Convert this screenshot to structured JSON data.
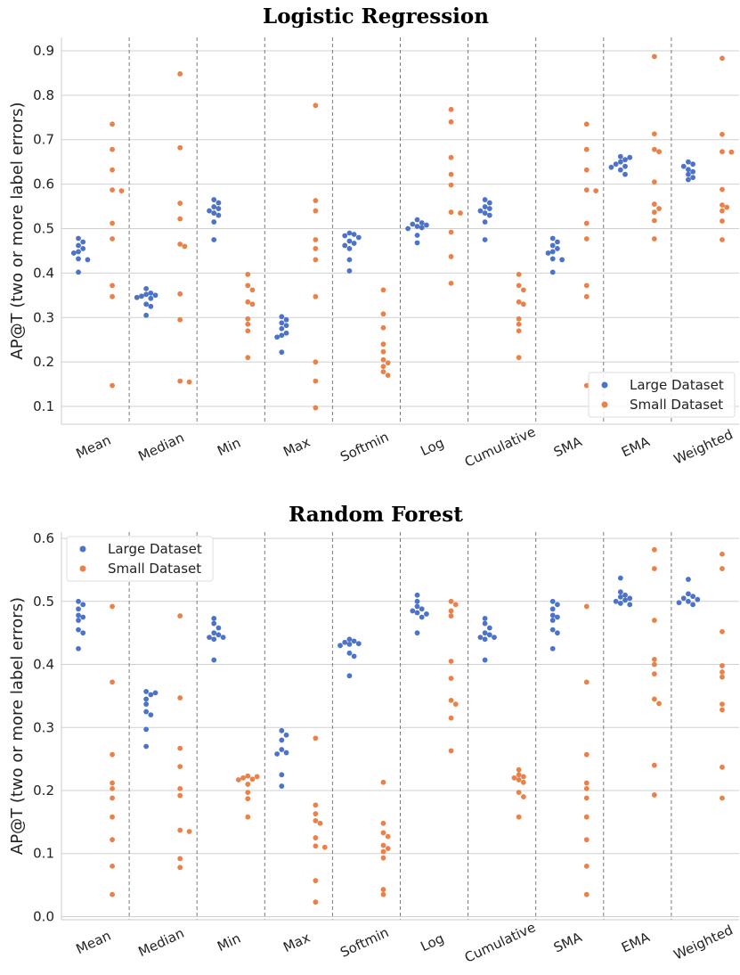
{
  "chart_data": [
    {
      "type": "scatter",
      "title": "Logistic Regression",
      "ylabel": "AP@T (two or more label errors)",
      "xlabel": "",
      "categories": [
        "Mean",
        "Median",
        "Min",
        "Max",
        "Softmin",
        "Log",
        "Cumulative",
        "SMA",
        "EMA",
        "Weighted"
      ],
      "ylim": [
        0.06,
        0.93
      ],
      "yticks": [
        "0.1",
        "0.2",
        "0.3",
        "0.4",
        "0.5",
        "0.6",
        "0.7",
        "0.8",
        "0.9"
      ],
      "grid": true,
      "legend_position": "bottom-right",
      "series": [
        {
          "name": "Large Dataset",
          "color": "#4c72c9",
          "values": [
            [
              0.478,
              0.47,
              0.462,
              0.455,
              0.448,
              0.445,
              0.432,
              0.43,
              0.402
            ],
            [
              0.365,
              0.355,
              0.352,
              0.35,
              0.348,
              0.345,
              0.343,
              0.33,
              0.325,
              0.305
            ],
            [
              0.565,
              0.558,
              0.549,
              0.545,
              0.54,
              0.535,
              0.53,
              0.515,
              0.475
            ],
            [
              0.302,
              0.295,
              0.288,
              0.282,
              0.275,
              0.265,
              0.26,
              0.256,
              0.222
            ],
            [
              0.49,
              0.487,
              0.484,
              0.48,
              0.472,
              0.467,
              0.462,
              0.455,
              0.43,
              0.405
            ],
            [
              0.52,
              0.513,
              0.51,
              0.508,
              0.505,
              0.502,
              0.5,
              0.485,
              0.468
            ],
            [
              0.565,
              0.558,
              0.549,
              0.545,
              0.54,
              0.535,
              0.53,
              0.515,
              0.475
            ],
            [
              0.478,
              0.47,
              0.462,
              0.455,
              0.448,
              0.445,
              0.432,
              0.43,
              0.402
            ],
            [
              0.662,
              0.66,
              0.655,
              0.65,
              0.645,
              0.64,
              0.638,
              0.632,
              0.622
            ],
            [
              0.65,
              0.645,
              0.64,
              0.633,
              0.628,
              0.622,
              0.615,
              0.61
            ]
          ]
        },
        {
          "name": "Small Dataset",
          "color": "#e8824a",
          "values": [
            [
              0.735,
              0.678,
              0.632,
              0.587,
              0.585,
              0.512,
              0.477,
              0.372,
              0.347,
              0.147
            ],
            [
              0.848,
              0.682,
              0.557,
              0.522,
              0.465,
              0.46,
              0.353,
              0.295,
              0.157,
              0.155
            ],
            [
              0.397,
              0.372,
              0.362,
              0.335,
              0.33,
              0.297,
              0.285,
              0.27,
              0.21
            ],
            [
              0.777,
              0.563,
              0.54,
              0.475,
              0.455,
              0.43,
              0.347,
              0.2,
              0.157,
              0.097
            ],
            [
              0.362,
              0.308,
              0.277,
              0.24,
              0.223,
              0.205,
              0.198,
              0.19,
              0.178,
              0.17
            ],
            [
              0.768,
              0.74,
              0.66,
              0.622,
              0.598,
              0.537,
              0.535,
              0.492,
              0.437,
              0.377
            ],
            [
              0.397,
              0.372,
              0.362,
              0.335,
              0.33,
              0.297,
              0.285,
              0.27,
              0.21
            ],
            [
              0.735,
              0.678,
              0.632,
              0.587,
              0.585,
              0.512,
              0.477,
              0.372,
              0.347,
              0.147
            ],
            [
              0.887,
              0.713,
              0.678,
              0.673,
              0.605,
              0.555,
              0.545,
              0.537,
              0.518,
              0.477
            ],
            [
              0.883,
              0.712,
              0.673,
              0.672,
              0.588,
              0.553,
              0.548,
              0.54,
              0.517,
              0.475
            ]
          ]
        }
      ]
    },
    {
      "type": "scatter",
      "title": "Random Forest",
      "ylabel": "AP@T (two or more label errors)",
      "xlabel": "",
      "categories": [
        "Mean",
        "Median",
        "Min",
        "Max",
        "Softmin",
        "Log",
        "Cumulative",
        "SMA",
        "EMA",
        "Weighted"
      ],
      "ylim": [
        -0.005,
        0.61
      ],
      "yticks": [
        "0.0",
        "0.1",
        "0.2",
        "0.3",
        "0.4",
        "0.5",
        "0.6"
      ],
      "grid": true,
      "legend_position": "top-left",
      "series": [
        {
          "name": "Large Dataset",
          "color": "#4c72c9",
          "values": [
            [
              0.5,
              0.495,
              0.488,
              0.478,
              0.475,
              0.47,
              0.455,
              0.45,
              0.425
            ],
            [
              0.357,
              0.355,
              0.352,
              0.345,
              0.337,
              0.325,
              0.32,
              0.297,
              0.27
            ],
            [
              0.473,
              0.465,
              0.458,
              0.45,
              0.447,
              0.443,
              0.443,
              0.44,
              0.407
            ],
            [
              0.295,
              0.288,
              0.28,
              0.265,
              0.26,
              0.258,
              0.225,
              0.207
            ],
            [
              0.44,
              0.437,
              0.435,
              0.433,
              0.432,
              0.43,
              0.418,
              0.413,
              0.382
            ],
            [
              0.51,
              0.5,
              0.492,
              0.488,
              0.485,
              0.482,
              0.48,
              0.475,
              0.45
            ],
            [
              0.473,
              0.465,
              0.458,
              0.45,
              0.447,
              0.443,
              0.443,
              0.44,
              0.407
            ],
            [
              0.5,
              0.495,
              0.488,
              0.478,
              0.475,
              0.47,
              0.455,
              0.45,
              0.425
            ],
            [
              0.537,
              0.515,
              0.51,
              0.507,
              0.505,
              0.502,
              0.5,
              0.497,
              0.495
            ],
            [
              0.535,
              0.512,
              0.508,
              0.505,
              0.503,
              0.5,
              0.498,
              0.495
            ]
          ]
        },
        {
          "name": "Small Dataset",
          "color": "#e8824a",
          "values": [
            [
              0.492,
              0.372,
              0.257,
              0.212,
              0.203,
              0.188,
              0.158,
              0.122,
              0.08,
              0.035
            ],
            [
              0.477,
              0.347,
              0.267,
              0.238,
              0.203,
              0.192,
              0.137,
              0.135,
              0.092,
              0.078
            ],
            [
              0.223,
              0.222,
              0.22,
              0.218,
              0.217,
              0.21,
              0.197,
              0.187,
              0.158
            ],
            [
              0.283,
              0.177,
              0.163,
              0.152,
              0.148,
              0.125,
              0.112,
              0.11,
              0.057,
              0.023
            ],
            [
              0.213,
              0.148,
              0.133,
              0.127,
              0.113,
              0.108,
              0.103,
              0.093,
              0.043,
              0.035
            ],
            [
              0.5,
              0.495,
              0.485,
              0.477,
              0.405,
              0.378,
              0.343,
              0.337,
              0.315,
              0.263
            ],
            [
              0.233,
              0.225,
              0.222,
              0.22,
              0.217,
              0.213,
              0.197,
              0.19,
              0.158
            ],
            [
              0.492,
              0.372,
              0.257,
              0.212,
              0.203,
              0.188,
              0.158,
              0.122,
              0.08,
              0.035
            ],
            [
              0.582,
              0.552,
              0.47,
              0.408,
              0.4,
              0.385,
              0.345,
              0.338,
              0.24,
              0.193
            ],
            [
              0.575,
              0.552,
              0.452,
              0.398,
              0.388,
              0.38,
              0.337,
              0.328,
              0.237,
              0.188
            ]
          ]
        }
      ]
    }
  ]
}
